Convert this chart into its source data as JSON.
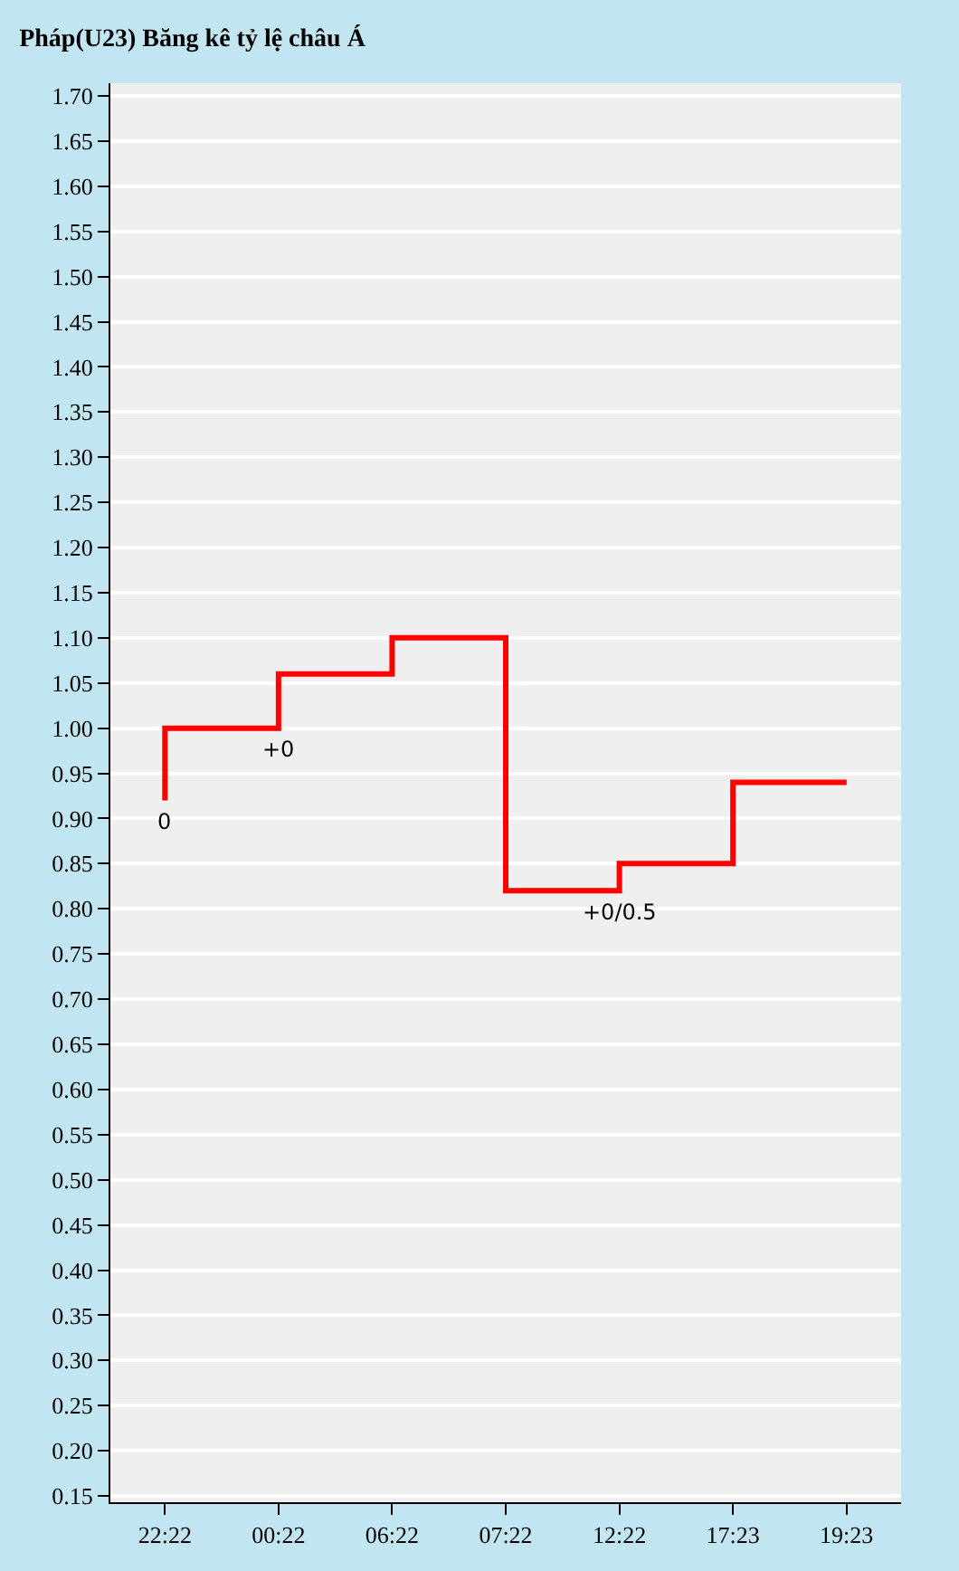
{
  "chart_data": {
    "type": "step",
    "title": "Pháp(U23) Băng kê tỷ lệ châu Á",
    "categories": [
      "22:22",
      "00:22",
      "06:22",
      "07:22",
      "12:22",
      "17:23",
      "19:23"
    ],
    "series": [
      {
        "color": "#ff0000",
        "values": [
          0.92,
          1.0,
          1.06,
          1.1,
          0.82,
          0.85,
          0.94
        ]
      }
    ],
    "ylim": [
      0.143,
      1.714
    ],
    "yticks": [
      {
        "value": 0.15,
        "label": "0.15"
      },
      {
        "value": 0.2,
        "label": "0.20"
      },
      {
        "value": 0.25,
        "label": "0.25"
      },
      {
        "value": 0.3,
        "label": "0.30"
      },
      {
        "value": 0.35,
        "label": "0.35"
      },
      {
        "value": 0.4,
        "label": "0.40"
      },
      {
        "value": 0.45,
        "label": "0.45"
      },
      {
        "value": 0.5,
        "label": "0.50"
      },
      {
        "value": 0.55,
        "label": "0.55"
      },
      {
        "value": 0.6,
        "label": "0.60"
      },
      {
        "value": 0.65,
        "label": "0.65"
      },
      {
        "value": 0.7,
        "label": "0.70"
      },
      {
        "value": 0.75,
        "label": "0.75"
      },
      {
        "value": 0.8,
        "label": "0.80"
      },
      {
        "value": 0.85,
        "label": "0.85"
      },
      {
        "value": 0.9,
        "label": "0.90"
      },
      {
        "value": 0.95,
        "label": "0.95"
      },
      {
        "value": 1.0,
        "label": "1.00"
      },
      {
        "value": 1.05,
        "label": "1.05"
      },
      {
        "value": 1.1,
        "label": "1.10"
      },
      {
        "value": 1.15,
        "label": "1.15"
      },
      {
        "value": 1.2,
        "label": "1.20"
      },
      {
        "value": 1.25,
        "label": "1.25"
      },
      {
        "value": 1.3,
        "label": "1.30"
      },
      {
        "value": 1.35,
        "label": "1.35"
      },
      {
        "value": 1.4,
        "label": "1.40"
      },
      {
        "value": 1.45,
        "label": "1.45"
      },
      {
        "value": 1.5,
        "label": "1.50"
      },
      {
        "value": 1.55,
        "label": "1.55"
      },
      {
        "value": 1.6,
        "label": "1.60"
      },
      {
        "value": 1.65,
        "label": "1.65"
      },
      {
        "value": 1.7,
        "label": "1.70"
      }
    ],
    "grid": "y",
    "line_style": "solid",
    "marker": "none",
    "annotations": [
      {
        "text": "0",
        "x": "22:22",
        "y": 0.92
      },
      {
        "text": "+0",
        "x": "00:22",
        "y": 1.0
      },
      {
        "text": "+0/0.5",
        "x": "12:22",
        "y": 0.82
      }
    ]
  }
}
